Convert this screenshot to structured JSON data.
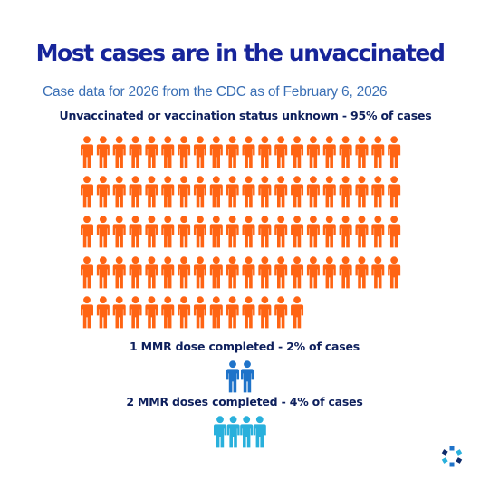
{
  "title": "Most cases are in the unvaccinated",
  "subtitle": "Case data for 2026 from the CDC as of February 6, 2026",
  "chart_data": {
    "type": "pictograph",
    "series": [
      {
        "label": "Unvaccinated or vaccination status unknown - 95% of cases",
        "percent": 95,
        "icons": 94,
        "color": "#ff6413"
      },
      {
        "label": "1 MMR dose completed - 2% of cases",
        "percent": 2,
        "icons": 2,
        "color": "#1f73c9"
      },
      {
        "label": "2 MMR doses completed - 4% of cases",
        "percent": 4,
        "icons": 4,
        "color": "#29b0dc"
      }
    ]
  },
  "colors": {
    "title": "#17259a",
    "subtitle": "#3a6fb5",
    "label": "#0d1f5c"
  },
  "icons": {
    "person": "person-icon",
    "logo": "cdc-logo-icon"
  }
}
